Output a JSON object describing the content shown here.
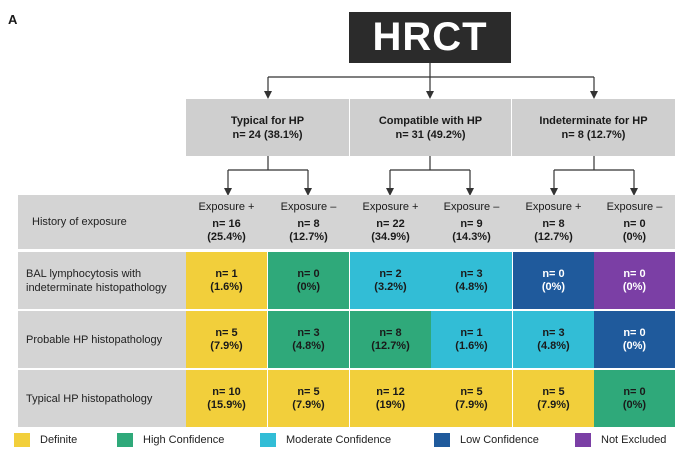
{
  "panel_label": "A",
  "title": "HRCT",
  "categories": [
    {
      "name": "Typical for HP",
      "n": "n= 24 (38.1%)"
    },
    {
      "name": "Compatible with HP",
      "n": "n= 31 (49.2%)"
    },
    {
      "name": "Indeterminate for HP",
      "n": "n= 8 (12.7%)"
    }
  ],
  "exposure_row": {
    "label": "History of exposure",
    "cells": [
      {
        "label": "Exposure +",
        "n": "n= 16",
        "pct": "(25.4%)"
      },
      {
        "label": "Exposure –",
        "n": "n= 8",
        "pct": "(12.7%)"
      },
      {
        "label": "Exposure +",
        "n": "n= 22",
        "pct": "(34.9%)"
      },
      {
        "label": "Exposure –",
        "n": "n= 9",
        "pct": "(14.3%)"
      },
      {
        "label": "Exposure +",
        "n": "n= 8",
        "pct": "(12.7%)"
      },
      {
        "label": "Exposure –",
        "n": "n= 0",
        "pct": "(0%)"
      }
    ]
  },
  "rows": [
    {
      "label": "BAL lymphocytosis with indeterminate histopathology",
      "cells": [
        {
          "n": "n= 1",
          "pct": "(1.6%)",
          "confidence": "Definite"
        },
        {
          "n": "n= 0",
          "pct": "(0%)",
          "confidence": "High Confidence"
        },
        {
          "n": "n= 2",
          "pct": "(3.2%)",
          "confidence": "Moderate Confidence"
        },
        {
          "n": "n= 3",
          "pct": "(4.8%)",
          "confidence": "Moderate Confidence"
        },
        {
          "n": "n= 0",
          "pct": "(0%)",
          "confidence": "Low Confidence"
        },
        {
          "n": "n= 0",
          "pct": "(0%)",
          "confidence": "Not Excluded"
        }
      ]
    },
    {
      "label": "Probable HP histopathology",
      "cells": [
        {
          "n": "n= 5",
          "pct": "(7.9%)",
          "confidence": "Definite"
        },
        {
          "n": "n= 3",
          "pct": "(4.8%)",
          "confidence": "High Confidence"
        },
        {
          "n": "n= 8",
          "pct": "(12.7%)",
          "confidence": "High Confidence"
        },
        {
          "n": "n= 1",
          "pct": "(1.6%)",
          "confidence": "Moderate Confidence"
        },
        {
          "n": "n= 3",
          "pct": "(4.8%)",
          "confidence": "Moderate Confidence"
        },
        {
          "n": "n= 0",
          "pct": "(0%)",
          "confidence": "Low Confidence"
        }
      ]
    },
    {
      "label": "Typical HP histopathology",
      "cells": [
        {
          "n": "n= 10",
          "pct": "(15.9%)",
          "confidence": "Definite"
        },
        {
          "n": "n= 5",
          "pct": "(7.9%)",
          "confidence": "Definite"
        },
        {
          "n": "n= 12",
          "pct": "(19%)",
          "confidence": "Definite"
        },
        {
          "n": "n= 5",
          "pct": "(7.9%)",
          "confidence": "Definite"
        },
        {
          "n": "n= 5",
          "pct": "(7.9%)",
          "confidence": "Definite"
        },
        {
          "n": "n= 0",
          "pct": "(0%)",
          "confidence": "High Confidence"
        }
      ]
    }
  ],
  "legend": [
    {
      "label": "Definite",
      "color": "#f2cf3b"
    },
    {
      "label": "High Confidence",
      "color": "#2fa97a"
    },
    {
      "label": "Moderate Confidence",
      "color": "#32bdd6"
    },
    {
      "label": "Low Confidence",
      "color": "#1f5a9c"
    },
    {
      "label": "Not Excluded",
      "color": "#7b3fa5"
    }
  ]
}
